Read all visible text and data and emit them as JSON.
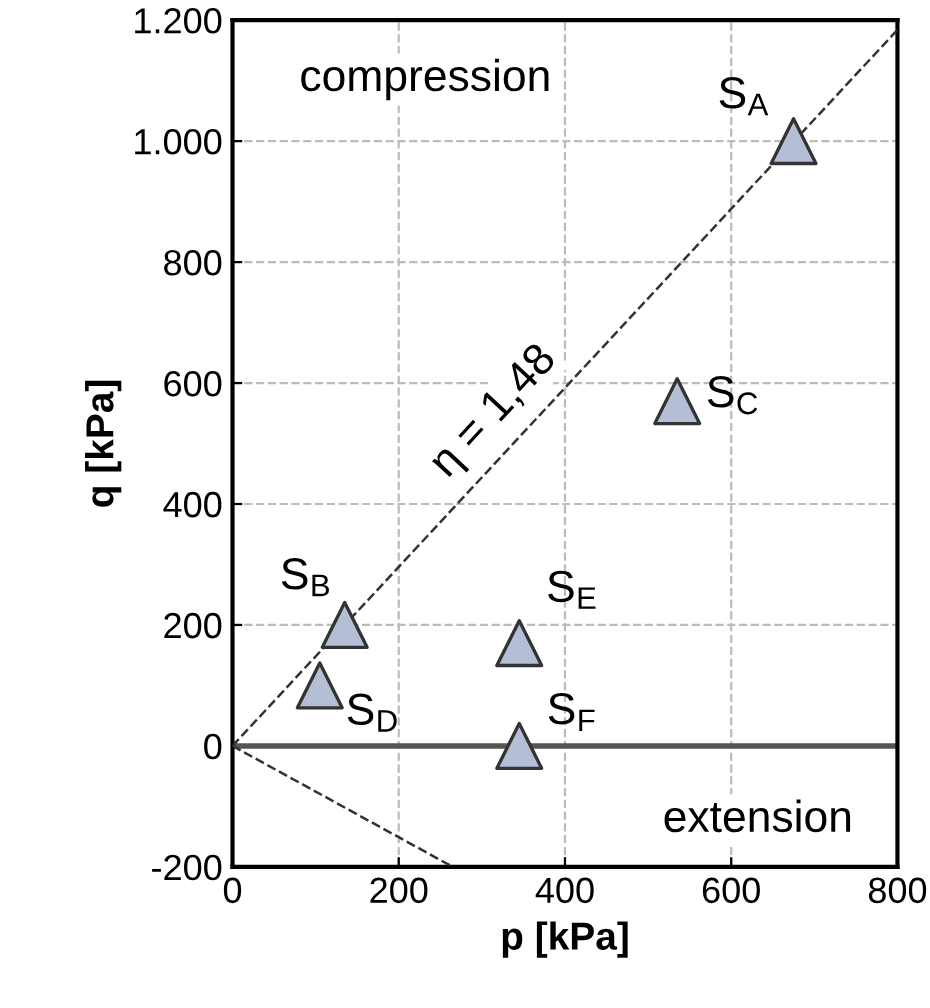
{
  "chart_data": {
    "type": "scatter",
    "xlabel": "p [kPa]",
    "ylabel": "q [kPa]",
    "xlim": [
      0,
      800
    ],
    "ylim": [
      -200,
      1200
    ],
    "xticks": [
      0,
      200,
      400,
      600,
      800
    ],
    "yticks": [
      -200,
      0,
      200,
      400,
      600,
      800,
      {
        "value": 1000,
        "label": "1.000"
      },
      {
        "value": 1200,
        "label": "1.200"
      }
    ],
    "grid": true,
    "marker": "triangle",
    "series": [
      {
        "color": "#b4bfd6",
        "x": [
          675,
          535,
          135,
          105,
          345,
          345
        ],
        "values": [
          1000,
          570,
          200,
          100,
          170,
          0
        ]
      },
      {
        "type": "line",
        "color": "#333333",
        "line_style": "dashed",
        "marker": "none",
        "x": [
          0,
          800
        ],
        "values": [
          0,
          1184
        ]
      },
      {
        "type": "line",
        "color": "#333333",
        "line_style": "dashed",
        "marker": "none",
        "x": [
          0,
          265
        ],
        "values": [
          0,
          -200
        ]
      }
    ],
    "ref_lines": [
      {
        "axis": "y",
        "value": 0,
        "color": "#555555"
      }
    ],
    "annotations": [
      {
        "text": "S$_{A}$",
        "x": 675,
        "y": 1000
      },
      {
        "text": "S$_{C}$",
        "x": 535,
        "y": 570
      },
      {
        "text": "S$_{B}$",
        "x": 135,
        "y": 200
      },
      {
        "text": "S$_{D}$",
        "x": 105,
        "y": 100
      },
      {
        "text": "S$_{E}$",
        "x": 345,
        "y": 170
      },
      {
        "text": "S$_{F}$",
        "x": 345,
        "y": 0
      },
      "compression",
      "extension",
      {
        "text": "η = 1,48",
        "x": 345,
        "y": 510.6
      }
    ]
  }
}
